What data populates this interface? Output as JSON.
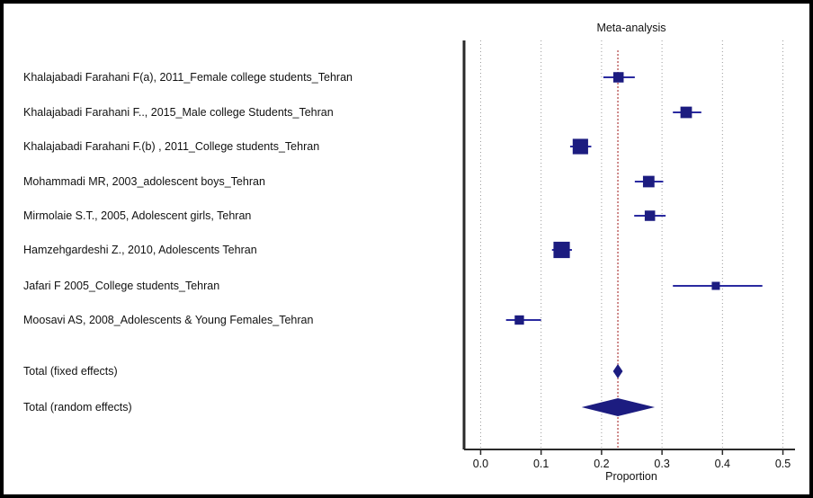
{
  "chart_data": {
    "type": "forest",
    "title": "Meta-analysis",
    "xlabel": "Proportion",
    "xlim": [
      -0.02,
      0.52
    ],
    "xticks": [
      "0.0",
      "0.1",
      "0.2",
      "0.3",
      "0.4",
      "0.5"
    ],
    "grid": "vertical dotted",
    "reference_line": 0.227,
    "colors": {
      "marker": "#1c1c80",
      "ci": "#2a2aa0",
      "reference": "#a01818"
    },
    "studies": [
      {
        "label": "Khalajabadi Farahani F(a), 2011_Female college students_Tehran",
        "estimate": 0.228,
        "lower": 0.203,
        "upper": 0.255
      },
      {
        "label": "Khalajabadi Farahani F.., 2015_Male college Students_Tehran",
        "estimate": 0.34,
        "lower": 0.318,
        "upper": 0.365
      },
      {
        "label": "Khalajabadi Farahani F.(b) , 2011_College students_Tehran",
        "estimate": 0.165,
        "lower": 0.148,
        "upper": 0.183
      },
      {
        "label": "Mohammadi MR, 2003_adolescent boys_Tehran",
        "estimate": 0.278,
        "lower": 0.255,
        "upper": 0.302
      },
      {
        "label": "Mirmolaie S.T., 2005, Adolescent girls, Tehran",
        "estimate": 0.28,
        "lower": 0.254,
        "upper": 0.306
      },
      {
        "label": "Hamzehgardeshi Z., 2010, Adolescents Tehran",
        "estimate": 0.134,
        "lower": 0.118,
        "upper": 0.151
      },
      {
        "label": "Jafari F 2005_College students_Tehran",
        "estimate": 0.389,
        "lower": 0.318,
        "upper": 0.466
      },
      {
        "label": "Moosavi AS, 2008_Adolescents & Young Females_Tehran",
        "estimate": 0.064,
        "lower": 0.042,
        "upper": 0.1
      }
    ],
    "totals": [
      {
        "label": "Total (fixed effects)",
        "estimate": 0.227,
        "lower": 0.219,
        "upper": 0.235
      },
      {
        "label": "Total (random effects)",
        "estimate": 0.227,
        "lower": 0.167,
        "upper": 0.288
      }
    ]
  }
}
